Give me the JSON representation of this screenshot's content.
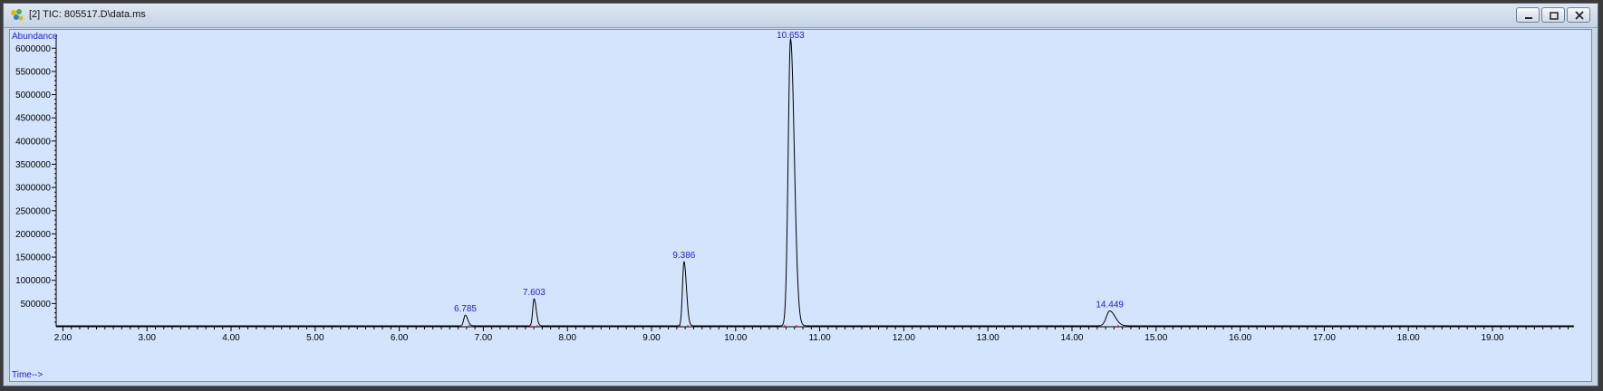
{
  "window": {
    "title": "[2] TIC: 805517.D\\data.ms",
    "icon": "chromatogram-app-icon"
  },
  "chart_data": {
    "type": "line",
    "title": "[2] TIC: 805517.D\\data.ms",
    "ylabel": "Abundance",
    "xlabel": "Time-->",
    "xlim": [
      1.92,
      19.97
    ],
    "ylim": [
      0,
      6200000
    ],
    "x_ticks": [
      "2.00",
      "3.00",
      "4.00",
      "5.00",
      "6.00",
      "7.00",
      "8.00",
      "9.00",
      "10.00",
      "11.00",
      "12.00",
      "13.00",
      "14.00",
      "15.00",
      "16.00",
      "17.00",
      "18.00",
      "19.00"
    ],
    "y_ticks": [
      "500000",
      "1000000",
      "1500000",
      "2000000",
      "2500000",
      "3000000",
      "3500000",
      "4000000",
      "4500000",
      "5000000",
      "5500000",
      "6000000"
    ],
    "baseline": 20000,
    "peaks": [
      {
        "rt": 6.785,
        "label": "6.785",
        "height": 230000,
        "width": 0.018
      },
      {
        "rt": 7.603,
        "label": "7.603",
        "height": 580000,
        "width": 0.016
      },
      {
        "rt": 9.386,
        "label": "9.386",
        "height": 1380000,
        "width": 0.018
      },
      {
        "rt": 10.653,
        "label": "10.653",
        "height": 6180000,
        "width": 0.028
      },
      {
        "rt": 14.449,
        "label": "14.449",
        "height": 320000,
        "width": 0.04
      }
    ],
    "colors": {
      "trace": "#000000",
      "label": "#1d1dcc",
      "marker": "#dd2222",
      "background": "#d4e4fc"
    }
  }
}
